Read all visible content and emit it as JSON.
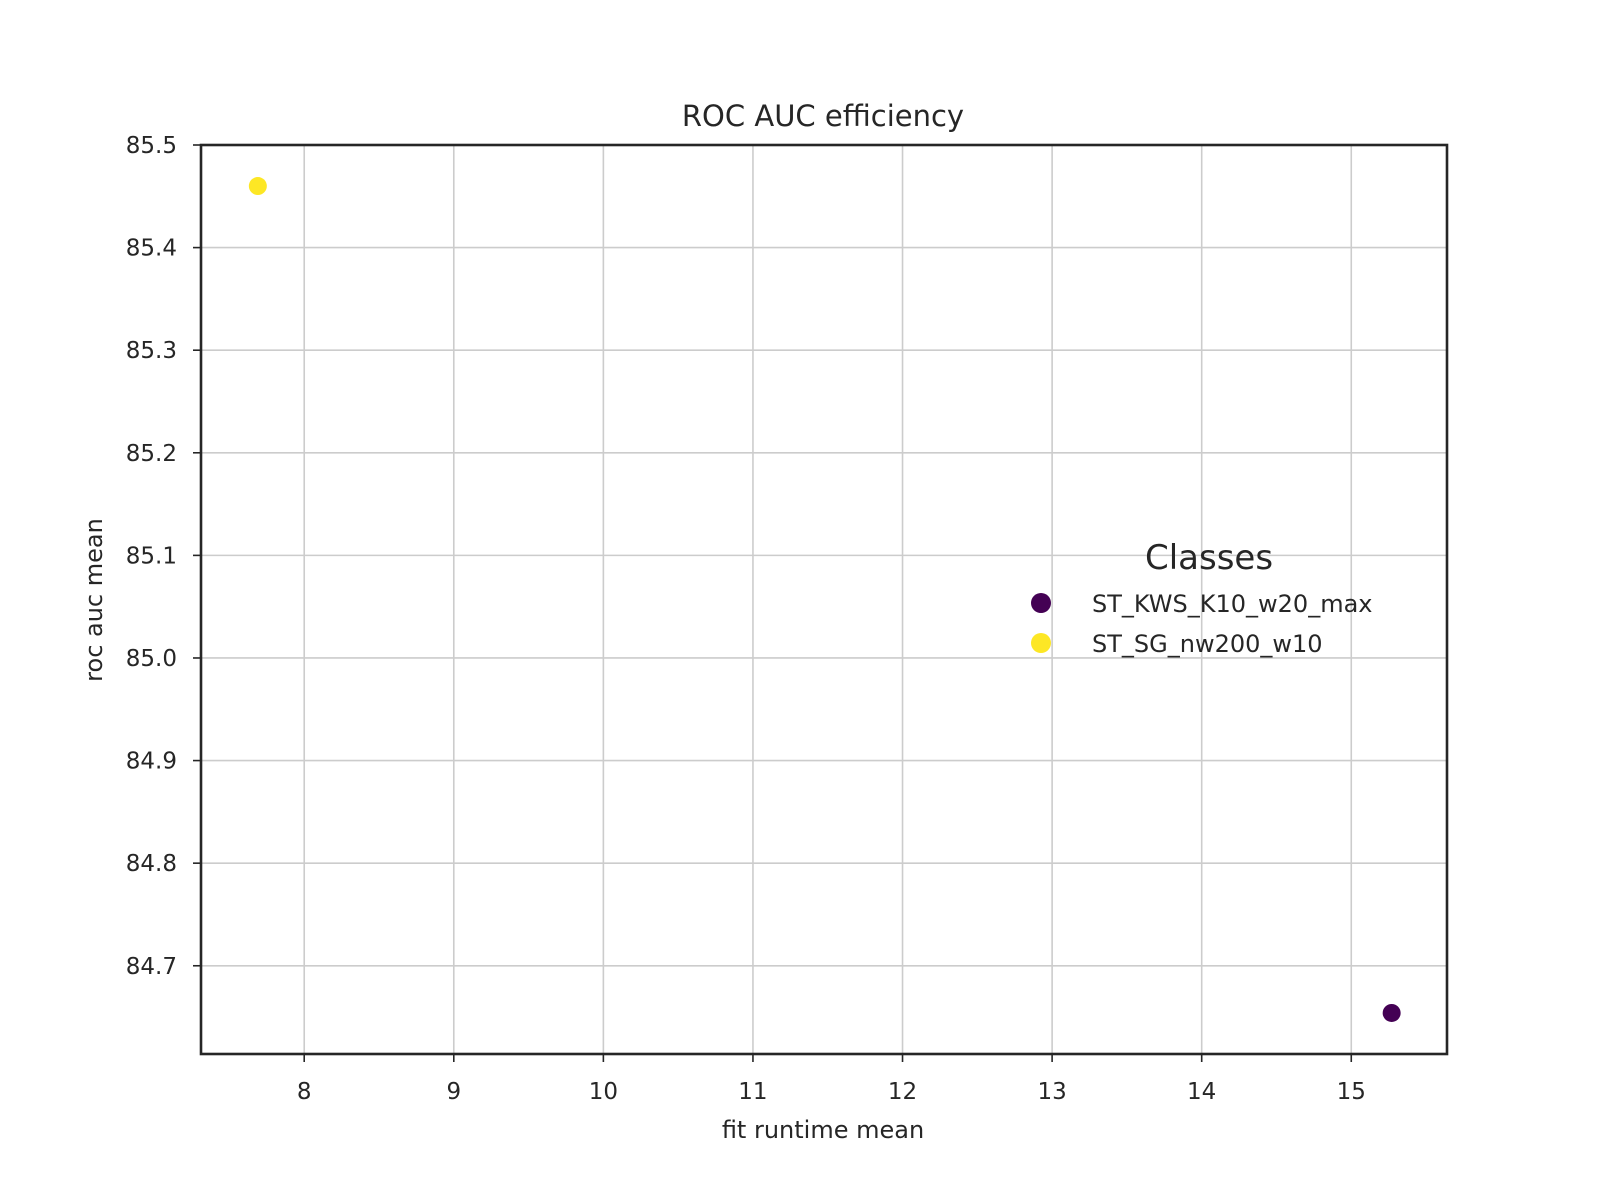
{
  "chart_data": {
    "type": "scatter",
    "title": "ROC AUC efficiency",
    "xlabel": "fit runtime mean",
    "ylabel": "roc auc mean",
    "xlim": [
      7.31,
      15.64
    ],
    "ylim": [
      84.614,
      85.5
    ],
    "xticks": [
      8,
      9,
      10,
      11,
      12,
      13,
      14,
      15
    ],
    "xtick_labels": [
      "8",
      "9",
      "10",
      "11",
      "12",
      "13",
      "14",
      "15"
    ],
    "yticks": [
      84.7,
      84.8,
      84.9,
      85.0,
      85.1,
      85.2,
      85.3,
      85.4,
      85.5
    ],
    "ytick_labels": [
      "84.7",
      "84.8",
      "84.9",
      "85.0",
      "85.1",
      "85.2",
      "85.3",
      "85.4",
      "85.5"
    ],
    "grid": true,
    "legend": {
      "title": "Classes",
      "placement": "center-right"
    },
    "series": [
      {
        "name": "ST_KWS_K10_w20_max",
        "color": "#440154",
        "points": [
          {
            "x": 15.27,
            "y": 84.654
          }
        ]
      },
      {
        "name": "ST_SG_nw200_w10",
        "color": "#fde725",
        "points": [
          {
            "x": 7.69,
            "y": 85.46
          }
        ]
      }
    ]
  }
}
